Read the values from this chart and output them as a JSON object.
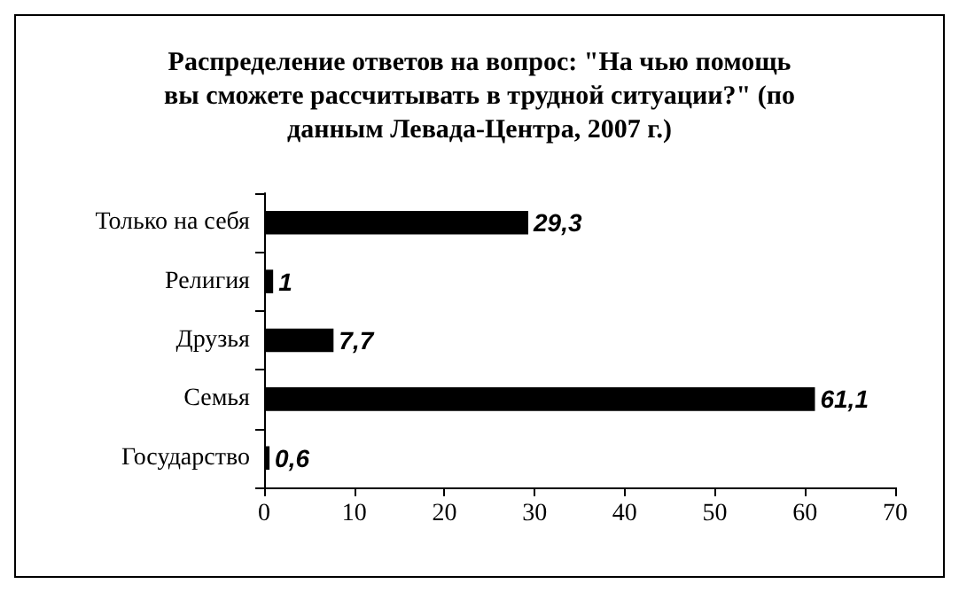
{
  "chart_data": {
    "type": "bar",
    "orientation": "horizontal",
    "title": "Распределение ответов на вопрос: \"На чью помощь\nвы сможете рассчитывать в трудной ситуации?\" (по\nданным Левада-Центра, 2007 г.)",
    "categories": [
      "Только на себя",
      "Религия",
      "Друзья",
      "Семья",
      "Государство"
    ],
    "values": [
      29.3,
      1,
      7.7,
      61.1,
      0.6
    ],
    "value_labels": [
      "29,3",
      "1",
      "7,7",
      "61,1",
      "0,6"
    ],
    "color": "#000000",
    "xlim": [
      0,
      70
    ],
    "xticks": [
      0,
      10,
      20,
      30,
      40,
      50,
      60,
      70
    ],
    "grid": false
  }
}
